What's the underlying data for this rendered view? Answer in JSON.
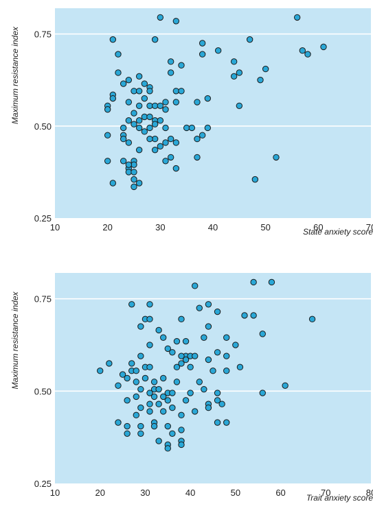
{
  "colors": {
    "plot_background": "#c5e5f5",
    "gridline": "#ffffff",
    "marker_fill": "#2aa7d6",
    "marker_stroke": "#1a1a1a"
  },
  "chart_data": [
    {
      "type": "scatter",
      "xlabel": "State anxiety score",
      "ylabel": "Maximum resistance index",
      "xlim": [
        10,
        70
      ],
      "ylim": [
        0.25,
        0.82
      ],
      "xticks": [
        10,
        20,
        30,
        40,
        50,
        60,
        70
      ],
      "yticks": [
        0.25,
        0.5,
        0.75
      ],
      "ytick_labels": [
        "0.25",
        "0.50",
        "0.75"
      ],
      "grid": "horizontal",
      "points": [
        [
          21,
          0.735
        ],
        [
          22,
          0.695
        ],
        [
          29,
          0.735
        ],
        [
          30,
          0.795
        ],
        [
          33,
          0.785
        ],
        [
          38,
          0.725
        ],
        [
          41,
          0.705
        ],
        [
          38,
          0.695
        ],
        [
          47,
          0.735
        ],
        [
          56,
          0.795
        ],
        [
          57,
          0.705
        ],
        [
          58,
          0.695
        ],
        [
          61,
          0.715
        ],
        [
          32,
          0.675
        ],
        [
          34,
          0.665
        ],
        [
          44,
          0.675
        ],
        [
          50,
          0.655
        ],
        [
          45,
          0.645
        ],
        [
          44,
          0.635
        ],
        [
          49,
          0.625
        ],
        [
          22,
          0.645
        ],
        [
          24,
          0.625
        ],
        [
          26,
          0.635
        ],
        [
          32,
          0.645
        ],
        [
          27,
          0.615
        ],
        [
          28,
          0.605
        ],
        [
          23,
          0.615
        ],
        [
          25,
          0.595
        ],
        [
          26,
          0.595
        ],
        [
          28,
          0.595
        ],
        [
          33,
          0.595
        ],
        [
          34,
          0.595
        ],
        [
          21,
          0.585
        ],
        [
          21,
          0.575
        ],
        [
          27,
          0.575
        ],
        [
          31,
          0.565
        ],
        [
          33,
          0.565
        ],
        [
          37,
          0.565
        ],
        [
          39,
          0.575
        ],
        [
          20,
          0.555
        ],
        [
          20,
          0.545
        ],
        [
          24,
          0.565
        ],
        [
          26,
          0.555
        ],
        [
          28,
          0.555
        ],
        [
          29,
          0.555
        ],
        [
          30,
          0.555
        ],
        [
          31,
          0.545
        ],
        [
          45,
          0.555
        ],
        [
          25,
          0.535
        ],
        [
          27,
          0.525
        ],
        [
          28,
          0.525
        ],
        [
          29,
          0.515
        ],
        [
          30,
          0.515
        ],
        [
          29,
          0.505
        ],
        [
          24,
          0.515
        ],
        [
          26,
          0.515
        ],
        [
          25,
          0.505
        ],
        [
          28,
          0.495
        ],
        [
          23,
          0.495
        ],
        [
          26,
          0.495
        ],
        [
          27,
          0.485
        ],
        [
          31,
          0.495
        ],
        [
          35,
          0.495
        ],
        [
          36,
          0.495
        ],
        [
          39,
          0.495
        ],
        [
          23,
          0.475
        ],
        [
          20,
          0.475
        ],
        [
          29,
          0.465
        ],
        [
          28,
          0.465
        ],
        [
          30,
          0.445
        ],
        [
          29,
          0.435
        ],
        [
          32,
          0.465
        ],
        [
          31,
          0.455
        ],
        [
          33,
          0.455
        ],
        [
          37,
          0.465
        ],
        [
          38,
          0.475
        ],
        [
          23,
          0.465
        ],
        [
          24,
          0.455
        ],
        [
          26,
          0.435
        ],
        [
          25,
          0.405
        ],
        [
          25,
          0.395
        ],
        [
          24,
          0.385
        ],
        [
          24,
          0.375
        ],
        [
          25,
          0.375
        ],
        [
          23,
          0.405
        ],
        [
          24,
          0.395
        ],
        [
          20,
          0.405
        ],
        [
          32,
          0.415
        ],
        [
          31,
          0.405
        ],
        [
          37,
          0.415
        ],
        [
          33,
          0.385
        ],
        [
          25,
          0.355
        ],
        [
          26,
          0.345
        ],
        [
          25,
          0.335
        ],
        [
          21,
          0.345
        ],
        [
          48,
          0.355
        ],
        [
          52,
          0.415
        ]
      ]
    },
    {
      "type": "scatter",
      "xlabel": "Trait anxiety score",
      "ylabel": "Maximum resistance index",
      "xlim": [
        10,
        80
      ],
      "ylim": [
        0.25,
        0.82
      ],
      "xticks": [
        10,
        20,
        30,
        40,
        50,
        60,
        70,
        80
      ],
      "yticks": [
        0.25,
        0.5,
        0.75
      ],
      "ytick_labels": [
        "0.25",
        "0.50",
        "0.75"
      ],
      "grid": "horizontal",
      "points": [
        [
          41,
          0.785
        ],
        [
          54,
          0.795
        ],
        [
          58,
          0.795
        ],
        [
          27,
          0.735
        ],
        [
          31,
          0.735
        ],
        [
          42,
          0.725
        ],
        [
          44,
          0.735
        ],
        [
          46,
          0.715
        ],
        [
          52,
          0.705
        ],
        [
          54,
          0.705
        ],
        [
          30,
          0.695
        ],
        [
          31,
          0.695
        ],
        [
          38,
          0.695
        ],
        [
          67,
          0.695
        ],
        [
          29,
          0.675
        ],
        [
          33,
          0.665
        ],
        [
          44,
          0.675
        ],
        [
          34,
          0.645
        ],
        [
          37,
          0.635
        ],
        [
          39,
          0.635
        ],
        [
          43,
          0.645
        ],
        [
          48,
          0.645
        ],
        [
          56,
          0.655
        ],
        [
          31,
          0.625
        ],
        [
          50,
          0.625
        ],
        [
          35,
          0.615
        ],
        [
          36,
          0.605
        ],
        [
          39,
          0.595
        ],
        [
          40,
          0.595
        ],
        [
          41,
          0.595
        ],
        [
          29,
          0.595
        ],
        [
          38,
          0.595
        ],
        [
          38,
          0.575
        ],
        [
          39,
          0.585
        ],
        [
          44,
          0.585
        ],
        [
          46,
          0.605
        ],
        [
          48,
          0.595
        ],
        [
          22,
          0.575
        ],
        [
          27,
          0.575
        ],
        [
          27,
          0.555
        ],
        [
          28,
          0.555
        ],
        [
          30,
          0.565
        ],
        [
          31,
          0.565
        ],
        [
          37,
          0.565
        ],
        [
          40,
          0.565
        ],
        [
          51,
          0.565
        ],
        [
          20,
          0.555
        ],
        [
          25,
          0.545
        ],
        [
          26,
          0.535
        ],
        [
          30,
          0.535
        ],
        [
          34,
          0.535
        ],
        [
          24,
          0.515
        ],
        [
          28,
          0.525
        ],
        [
          32,
          0.525
        ],
        [
          37,
          0.525
        ],
        [
          45,
          0.555
        ],
        [
          48,
          0.555
        ],
        [
          42,
          0.525
        ],
        [
          32,
          0.505
        ],
        [
          33,
          0.505
        ],
        [
          29,
          0.505
        ],
        [
          31,
          0.495
        ],
        [
          35,
          0.495
        ],
        [
          36,
          0.495
        ],
        [
          40,
          0.495
        ],
        [
          43,
          0.505
        ],
        [
          46,
          0.495
        ],
        [
          56,
          0.495
        ],
        [
          61,
          0.515
        ],
        [
          26,
          0.475
        ],
        [
          28,
          0.485
        ],
        [
          32,
          0.485
        ],
        [
          34,
          0.485
        ],
        [
          35,
          0.475
        ],
        [
          39,
          0.475
        ],
        [
          31,
          0.465
        ],
        [
          33,
          0.465
        ],
        [
          44,
          0.465
        ],
        [
          46,
          0.475
        ],
        [
          47,
          0.465
        ],
        [
          29,
          0.455
        ],
        [
          31,
          0.445
        ],
        [
          34,
          0.445
        ],
        [
          36,
          0.455
        ],
        [
          44,
          0.455
        ],
        [
          41,
          0.445
        ],
        [
          28,
          0.435
        ],
        [
          38,
          0.435
        ],
        [
          24,
          0.415
        ],
        [
          26,
          0.405
        ],
        [
          29,
          0.405
        ],
        [
          32,
          0.415
        ],
        [
          32,
          0.405
        ],
        [
          35,
          0.405
        ],
        [
          46,
          0.415
        ],
        [
          48,
          0.415
        ],
        [
          26,
          0.385
        ],
        [
          29,
          0.385
        ],
        [
          36,
          0.385
        ],
        [
          38,
          0.395
        ],
        [
          33,
          0.365
        ],
        [
          38,
          0.365
        ],
        [
          35,
          0.355
        ],
        [
          38,
          0.355
        ],
        [
          35,
          0.345
        ]
      ]
    }
  ]
}
